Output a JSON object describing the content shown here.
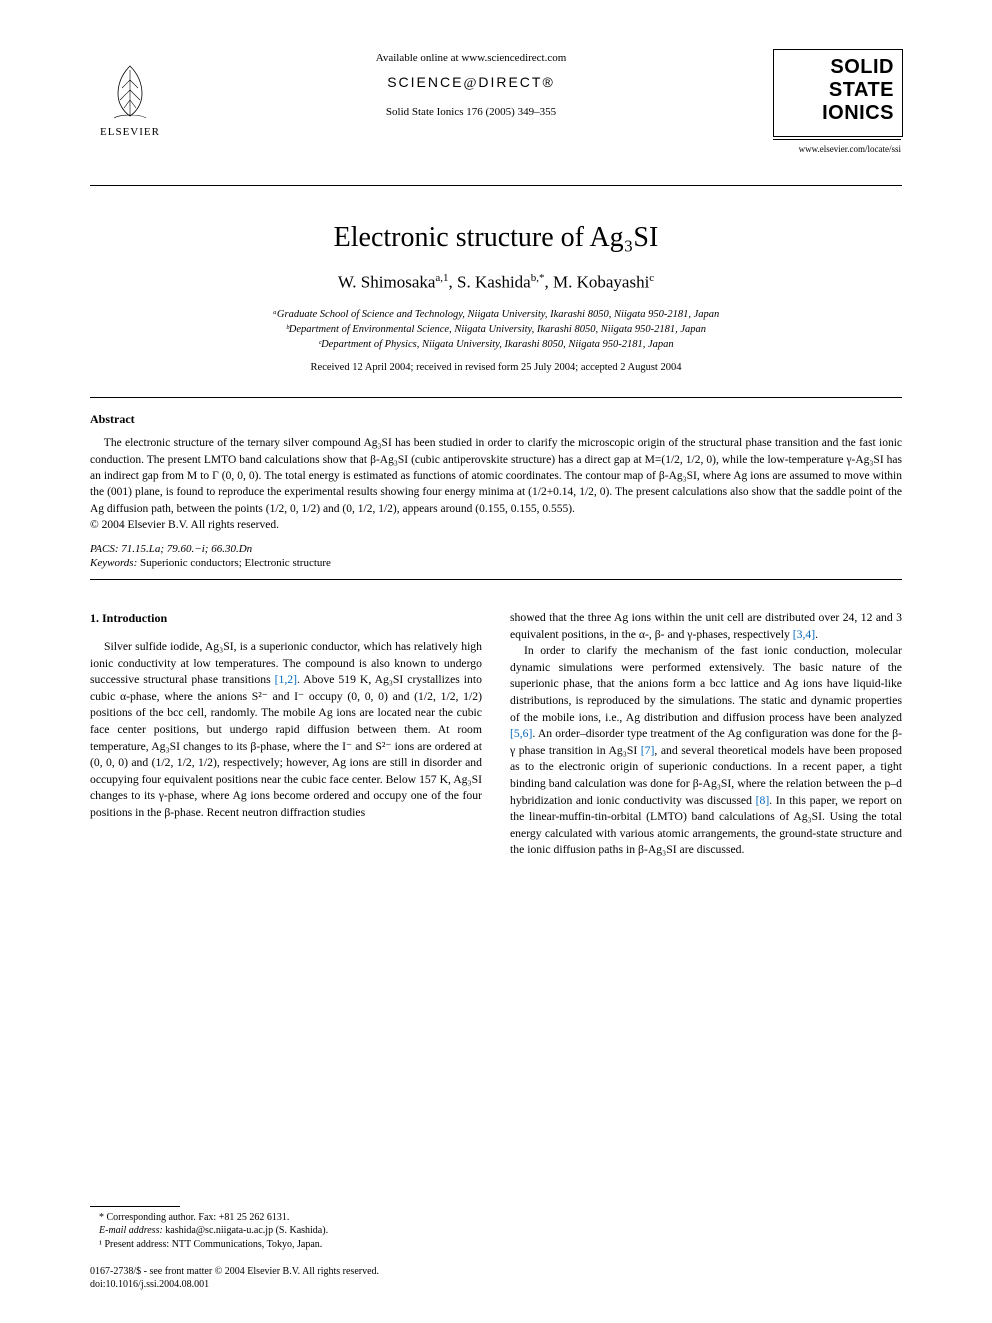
{
  "header": {
    "available_online": "Available online at www.sciencedirect.com",
    "sciencedirect_prefix": "SCIENCE",
    "sciencedirect_at": "@",
    "sciencedirect_suffix": "DIRECT®",
    "journal_reference": "Solid State Ionics 176 (2005) 349–355",
    "publisher_name": "ELSEVIER",
    "journal_logo_line1": "SOLID",
    "journal_logo_line2": "STATE",
    "journal_logo_line3": "IONICS",
    "journal_url": "www.elsevier.com/locate/ssi"
  },
  "title": "Electronic structure of Ag₃SI",
  "authors_html": "W. Shimosaka<sup>a,1</sup>, S. Kashida<sup>b,*</sup>, M. Kobayashi<sup>c</sup>",
  "affiliations": {
    "a": "ᵃGraduate School of Science and Technology, Niigata University, Ikarashi 8050, Niigata 950-2181, Japan",
    "b": "ᵇDepartment of Environmental Science, Niigata University, Ikarashi 8050, Niigata 950-2181, Japan",
    "c": "ᶜDepartment of Physics, Niigata University, Ikarashi 8050, Niigata 950-2181, Japan"
  },
  "dates": "Received 12 April 2004; received in revised form 25 July 2004; accepted 2 August 2004",
  "abstract": {
    "heading": "Abstract",
    "body": "The electronic structure of the ternary silver compound Ag₃SI has been studied in order to clarify the microscopic origin of the structural phase transition and the fast ionic conduction. The present LMTO band calculations show that β-Ag₃SI (cubic antiperovskite structure) has a direct gap at M=(1/2, 1/2, 0), while the low-temperature γ-Ag₃SI has an indirect gap from M to Γ (0, 0, 0). The total energy is estimated as functions of atomic coordinates. The contour map of β-Ag₃SI, where Ag ions are assumed to move within the (001) plane, is found to reproduce the experimental results showing four energy minima at (1/2+0.14, 1/2, 0). The present calculations also show that the saddle point of the Ag diffusion path, between the points (1/2, 0, 1/2) and (0, 1/2, 1/2), appears around (0.155, 0.155, 0.555).",
    "copyright": "© 2004 Elsevier B.V. All rights reserved."
  },
  "pacs": {
    "label": "PACS:",
    "value": " 71.15.La; 79.60.−i; 66.30.Dn"
  },
  "keywords": {
    "label": "Keywords:",
    "value": " Superionic conductors; Electronic structure"
  },
  "section1": {
    "heading": "1. Introduction",
    "col1_p1_a": "Silver sulfide iodide, Ag₃SI, is a superionic conductor, which has relatively high ionic conductivity at low temperatures. The compound is also known to undergo successive structural phase transitions ",
    "col1_ref1": "[1,2]",
    "col1_p1_b": ". Above 519 K, Ag₃SI crystallizes into cubic α-phase, where the anions S²⁻ and I⁻ occupy (0, 0, 0) and (1/2, 1/2, 1/2) positions of the bcc cell, randomly. The mobile Ag ions are located near the cubic face center positions, but undergo rapid diffusion between them. At room temperature, Ag₃SI changes to its β-phase, where the I⁻ and S²⁻ ions are ordered at (0, 0, 0) and (1/2, 1/2, 1/2), respectively; however, Ag ions are still in disorder and occupying four equivalent positions near the cubic face center. Below 157 K, Ag₃SI changes to its γ-phase, where Ag ions become ordered and occupy one of the four positions in the β-phase. Recent neutron diffraction studies",
    "col2_p1_a": "showed that the three Ag ions within the unit cell are distributed over 24, 12 and 3 equivalent positions, in the α-, β- and γ-phases, respectively ",
    "col2_ref1": "[3,4]",
    "col2_p1_b": ".",
    "col2_p2_a": "In order to clarify the mechanism of the fast ionic conduction, molecular dynamic simulations were performed extensively. The basic nature of the superionic phase, that the anions form a bcc lattice and Ag ions have liquid-like distributions, is reproduced by the simulations. The static and dynamic properties of the mobile ions, i.e., Ag distribution and diffusion process have been analyzed ",
    "col2_ref2": "[5,6]",
    "col2_p2_b": ". An order–disorder type treatment of the Ag configuration was done for the β-γ phase transition in Ag₃SI ",
    "col2_ref3": "[7]",
    "col2_p2_c": ", and several theoretical models have been proposed as to the electronic origin of superionic conductions. In a recent paper, a tight binding band calculation was done for β-Ag₃SI, where the relation between the p–d hybridization and ionic conductivity was discussed ",
    "col2_ref4": "[8]",
    "col2_p2_d": ". In this paper, we report on the linear-muffin-tin-orbital (LMTO) band calculations of Ag₃SI. Using the total energy calculated with various atomic arrangements, the ground-state structure and the ionic diffusion paths in β-Ag₃SI are discussed."
  },
  "footnotes": {
    "corresponding": "* Corresponding author. Fax: +81 25 262 6131.",
    "email_label": "E-mail address:",
    "email_value": " kashida@sc.niigata-u.ac.jp (S. Kashida).",
    "note1": "¹ Present address: NTT Communications, Tokyo, Japan."
  },
  "bottom": {
    "issn": "0167-2738/$ - see front matter © 2004 Elsevier B.V. All rights reserved.",
    "doi": "doi:10.1016/j.ssi.2004.08.001"
  },
  "colors": {
    "ref_link": "#0468bf",
    "text": "#000000",
    "background": "#ffffff"
  }
}
